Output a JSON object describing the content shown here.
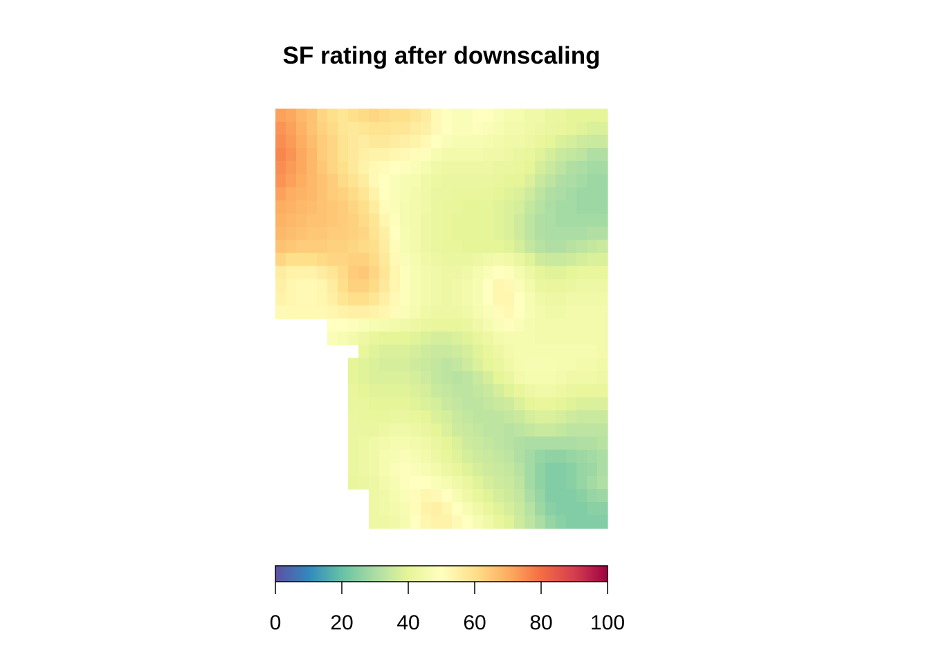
{
  "chart_data": {
    "type": "heatmap",
    "title": "SF rating after downscaling",
    "xlabel": "",
    "ylabel": "",
    "grid": false,
    "legend": "bottom",
    "grid_size": {
      "cols": 32,
      "rows": 32
    },
    "colorbar": {
      "range": [
        0,
        100
      ],
      "ticks": [
        0,
        20,
        40,
        60,
        80,
        100
      ],
      "palette": [
        "#5E4FA2",
        "#3288BD",
        "#66C2A5",
        "#ABDDA4",
        "#E6F598",
        "#FFFFBF",
        "#FEE08B",
        "#FDAE61",
        "#F46D43",
        "#D53E4F",
        "#9E0142"
      ]
    },
    "values": [
      [
        72,
        71,
        68,
        66,
        62,
        60,
        58,
        60,
        61,
        62,
        61,
        60,
        60,
        58,
        56,
        52,
        50,
        48,
        48,
        50,
        50,
        48,
        46,
        46,
        44,
        44,
        42,
        42,
        40,
        40,
        40,
        40
      ],
      [
        74,
        72,
        69,
        66,
        63,
        61,
        58,
        57,
        58,
        59,
        59,
        58,
        58,
        56,
        55,
        52,
        50,
        48,
        48,
        49,
        48,
        47,
        45,
        45,
        44,
        43,
        42,
        41,
        40,
        39,
        38,
        38
      ],
      [
        75,
        73,
        70,
        67,
        64,
        62,
        59,
        57,
        56,
        57,
        57,
        56,
        55,
        54,
        52,
        50,
        48,
        47,
        47,
        47,
        46,
        45,
        44,
        44,
        43,
        41,
        40,
        38,
        37,
        36,
        35,
        35
      ],
      [
        76,
        74,
        71,
        68,
        64,
        62,
        59,
        57,
        55,
        54,
        54,
        53,
        52,
        51,
        49,
        47,
        45,
        45,
        45,
        45,
        44,
        44,
        43,
        42,
        41,
        39,
        37,
        35,
        34,
        33,
        31,
        31
      ],
      [
        75,
        73,
        71,
        68,
        65,
        62,
        60,
        57,
        54,
        52,
        51,
        50,
        49,
        48,
        46,
        44,
        43,
        43,
        43,
        43,
        43,
        42,
        42,
        41,
        40,
        37,
        35,
        33,
        31,
        30,
        29,
        29
      ],
      [
        74,
        72,
        70,
        68,
        66,
        64,
        61,
        59,
        56,
        52,
        50,
        48,
        47,
        46,
        44,
        43,
        42,
        42,
        42,
        42,
        42,
        41,
        40,
        40,
        38,
        35,
        33,
        31,
        30,
        29,
        28,
        28
      ],
      [
        72,
        70,
        69,
        68,
        66,
        64,
        63,
        61,
        58,
        54,
        50,
        48,
        47,
        45,
        44,
        42,
        42,
        41,
        41,
        41,
        41,
        40,
        39,
        38,
        36,
        33,
        31,
        30,
        29,
        28,
        28,
        28
      ],
      [
        70,
        69,
        68,
        67,
        66,
        65,
        64,
        62,
        60,
        56,
        51,
        48,
        46,
        45,
        44,
        42,
        41,
        41,
        40,
        40,
        40,
        39,
        38,
        37,
        34,
        32,
        30,
        29,
        29,
        28,
        28,
        28
      ],
      [
        69,
        68,
        67,
        66,
        66,
        65,
        64,
        63,
        61,
        58,
        53,
        49,
        46,
        45,
        43,
        42,
        41,
        40,
        40,
        40,
        40,
        39,
        38,
        36,
        33,
        31,
        30,
        29,
        29,
        29,
        29,
        29
      ],
      [
        68,
        67,
        66,
        65,
        65,
        64,
        64,
        63,
        62,
        59,
        55,
        50,
        47,
        45,
        43,
        42,
        41,
        40,
        40,
        40,
        40,
        39,
        38,
        36,
        33,
        31,
        30,
        30,
        30,
        30,
        31,
        31
      ],
      [
        66,
        65,
        64,
        64,
        64,
        63,
        63,
        62,
        61,
        60,
        56,
        51,
        47,
        45,
        43,
        42,
        41,
        41,
        40,
        40,
        40,
        40,
        39,
        37,
        34,
        32,
        31,
        31,
        32,
        33,
        34,
        35
      ],
      [
        62,
        60,
        60,
        60,
        61,
        62,
        62,
        63,
        63,
        61,
        57,
        52,
        48,
        46,
        44,
        43,
        42,
        42,
        42,
        43,
        44,
        45,
        44,
        42,
        39,
        36,
        35,
        35,
        36,
        37,
        38,
        38
      ],
      [
        56,
        54,
        54,
        54,
        56,
        58,
        61,
        64,
        65,
        62,
        58,
        53,
        49,
        47,
        45,
        44,
        43,
        43,
        44,
        46,
        48,
        50,
        49,
        46,
        43,
        40,
        39,
        39,
        40,
        41,
        41,
        41
      ],
      [
        55,
        53,
        52,
        52,
        53,
        56,
        60,
        63,
        63,
        61,
        57,
        53,
        49,
        47,
        45,
        44,
        43,
        44,
        45,
        47,
        50,
        53,
        52,
        48,
        45,
        42,
        41,
        41,
        42,
        43,
        43,
        43
      ],
      [
        54,
        53,
        52,
        52,
        53,
        55,
        58,
        60,
        60,
        58,
        55,
        52,
        49,
        47,
        45,
        44,
        43,
        44,
        45,
        47,
        50,
        53,
        53,
        50,
        47,
        44,
        43,
        43,
        44,
        44,
        44,
        44
      ],
      [
        52,
        52,
        52,
        52,
        52,
        53,
        54,
        55,
        55,
        54,
        53,
        51,
        48,
        46,
        44,
        43,
        43,
        43,
        44,
        46,
        48,
        51,
        52,
        50,
        47,
        45,
        44,
        44,
        45,
        45,
        45,
        45
      ],
      [
        null,
        null,
        null,
        null,
        null,
        50,
        50,
        49,
        48,
        47,
        46,
        45,
        44,
        43,
        42,
        41,
        41,
        41,
        42,
        44,
        46,
        48,
        49,
        48,
        46,
        45,
        45,
        45,
        45,
        45,
        45,
        45
      ],
      [
        null,
        null,
        null,
        null,
        null,
        48,
        47,
        45,
        43,
        41,
        40,
        40,
        40,
        39,
        38,
        37,
        37,
        38,
        39,
        41,
        43,
        45,
        46,
        46,
        46,
        45,
        45,
        45,
        45,
        45,
        45,
        45
      ],
      [
        null,
        null,
        null,
        null,
        null,
        null,
        null,
        null,
        41,
        39,
        38,
        38,
        38,
        37,
        36,
        35,
        35,
        36,
        37,
        39,
        41,
        43,
        45,
        46,
        46,
        46,
        46,
        46,
        46,
        46,
        46,
        45
      ],
      [
        null,
        null,
        null,
        null,
        null,
        null,
        null,
        40,
        39,
        38,
        37,
        37,
        37,
        36,
        35,
        34,
        33,
        34,
        36,
        38,
        40,
        42,
        44,
        46,
        47,
        47,
        47,
        46,
        46,
        45,
        45,
        44
      ],
      [
        null,
        null,
        null,
        null,
        null,
        null,
        null,
        40,
        39,
        38,
        38,
        38,
        38,
        37,
        36,
        34,
        33,
        32,
        33,
        35,
        37,
        40,
        42,
        45,
        46,
        46,
        46,
        45,
        44,
        44,
        44,
        43
      ],
      [
        null,
        null,
        null,
        null,
        null,
        null,
        null,
        41,
        40,
        39,
        39,
        39,
        39,
        38,
        37,
        35,
        34,
        33,
        33,
        34,
        35,
        37,
        39,
        41,
        43,
        44,
        44,
        43,
        42,
        41,
        41,
        41
      ],
      [
        null,
        null,
        null,
        null,
        null,
        null,
        null,
        41,
        41,
        40,
        40,
        40,
        40,
        39,
        38,
        37,
        35,
        34,
        33,
        33,
        34,
        35,
        36,
        38,
        40,
        41,
        41,
        40,
        39,
        38,
        38,
        38
      ],
      [
        null,
        null,
        null,
        null,
        null,
        null,
        null,
        42,
        41,
        41,
        41,
        42,
        42,
        41,
        40,
        38,
        37,
        35,
        34,
        33,
        33,
        33,
        34,
        35,
        37,
        38,
        38,
        37,
        36,
        35,
        35,
        35
      ],
      [
        null,
        null,
        null,
        null,
        null,
        null,
        null,
        42,
        42,
        42,
        43,
        44,
        44,
        43,
        42,
        40,
        38,
        36,
        35,
        34,
        33,
        33,
        32,
        33,
        34,
        35,
        35,
        34,
        33,
        33,
        33,
        33
      ],
      [
        null,
        null,
        null,
        null,
        null,
        null,
        null,
        42,
        43,
        44,
        45,
        46,
        46,
        45,
        44,
        42,
        40,
        38,
        36,
        35,
        34,
        33,
        32,
        31,
        30,
        30,
        30,
        30,
        30,
        31,
        31,
        32
      ],
      [
        null,
        null,
        null,
        null,
        null,
        null,
        null,
        42,
        43,
        44,
        46,
        47,
        48,
        47,
        45,
        43,
        41,
        39,
        37,
        36,
        35,
        34,
        33,
        31,
        29,
        27,
        26,
        26,
        27,
        28,
        29,
        30
      ],
      [
        null,
        null,
        null,
        null,
        null,
        null,
        null,
        42,
        43,
        44,
        46,
        48,
        49,
        48,
        47,
        45,
        43,
        41,
        39,
        37,
        36,
        35,
        34,
        32,
        29,
        26,
        24,
        24,
        25,
        27,
        28,
        30
      ],
      [
        null,
        null,
        null,
        null,
        null,
        null,
        null,
        41,
        42,
        43,
        45,
        47,
        49,
        50,
        50,
        48,
        46,
        44,
        42,
        39,
        37,
        36,
        35,
        33,
        29,
        26,
        24,
        24,
        25,
        27,
        29,
        31
      ],
      [
        null,
        null,
        null,
        null,
        null,
        null,
        null,
        null,
        null,
        43,
        44,
        46,
        48,
        51,
        53,
        52,
        50,
        47,
        44,
        41,
        39,
        37,
        36,
        34,
        30,
        27,
        24,
        24,
        24,
        25,
        27,
        28
      ],
      [
        null,
        null,
        null,
        null,
        null,
        null,
        null,
        null,
        null,
        43,
        44,
        45,
        47,
        51,
        54,
        55,
        53,
        50,
        47,
        44,
        41,
        39,
        37,
        35,
        32,
        28,
        25,
        24,
        24,
        24,
        25,
        25
      ],
      [
        null,
        null,
        null,
        null,
        null,
        null,
        null,
        null,
        null,
        43,
        43,
        44,
        46,
        50,
        53,
        54,
        54,
        52,
        50,
        47,
        44,
        41,
        39,
        36,
        33,
        30,
        27,
        25,
        24,
        24,
        24,
        24
      ]
    ]
  }
}
